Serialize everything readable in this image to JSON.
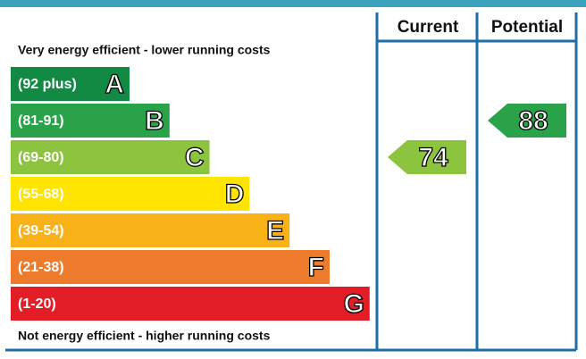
{
  "header": {
    "current": "Current",
    "potential": "Potential"
  },
  "top_note": "Very energy efficient - lower running costs",
  "bottom_note": "Not energy efficient - higher running costs",
  "bands": [
    {
      "range": "(92 plus)",
      "letter": "A",
      "color": "#138a43"
    },
    {
      "range": "(81-91)",
      "letter": "B",
      "color": "#2aa24a"
    },
    {
      "range": "(69-80)",
      "letter": "C",
      "color": "#8cc43f"
    },
    {
      "range": "(55-68)",
      "letter": "D",
      "color": "#ffe400"
    },
    {
      "range": "(39-54)",
      "letter": "E",
      "color": "#f8b117"
    },
    {
      "range": "(21-38)",
      "letter": "F",
      "color": "#ee7b2c"
    },
    {
      "range": "(1-20)",
      "letter": "G",
      "color": "#e21d25"
    }
  ],
  "current": 74,
  "potential": 88
}
